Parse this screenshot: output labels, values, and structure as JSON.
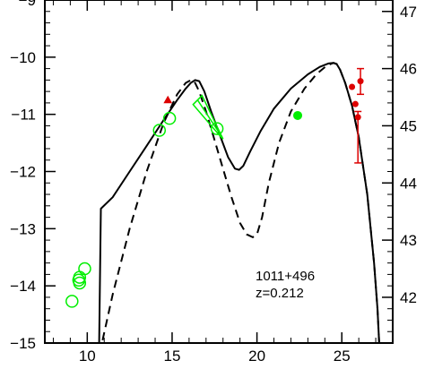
{
  "chart_data": {
    "type": "line",
    "title": "",
    "xlabel": "",
    "ylabel": "",
    "xlim": [
      7.5,
      28
    ],
    "ylim": [
      -15,
      -9
    ],
    "y2lim": [
      41.2,
      47.2
    ],
    "x_ticks": [
      10,
      15,
      20,
      25
    ],
    "y_ticks": [
      -15,
      -14,
      -13,
      -12,
      -11,
      -10,
      -9
    ],
    "y2_ticks": [
      42,
      43,
      44,
      45,
      46,
      47
    ],
    "annotation": [
      "1011+496",
      "z=0.212"
    ],
    "colors": {
      "axes": "#000000",
      "optical_uv": "#00ee00",
      "xray": "#dd0000",
      "radio": "#00ee00"
    },
    "series": [
      {
        "style": "solid",
        "color": "#000000",
        "x": [
          10.7,
          10.8,
          11.5,
          12.5,
          13.5,
          14.5,
          15.3,
          15.8,
          16.1,
          16.35,
          16.6,
          16.9,
          17.3,
          17.8,
          18.3,
          18.7,
          18.95,
          19.2,
          19.6,
          20.2,
          21.0,
          22.0,
          23.0,
          23.7,
          24.2,
          24.5,
          24.7,
          24.9,
          25.2,
          25.6,
          26.0,
          26.5,
          26.9,
          27.1,
          27.2
        ],
        "y": [
          -15.0,
          -12.65,
          -12.45,
          -12.0,
          -11.55,
          -11.1,
          -10.75,
          -10.55,
          -10.45,
          -10.4,
          -10.42,
          -10.6,
          -10.95,
          -11.35,
          -11.75,
          -11.95,
          -11.97,
          -11.9,
          -11.65,
          -11.3,
          -10.9,
          -10.55,
          -10.3,
          -10.17,
          -10.11,
          -10.1,
          -10.12,
          -10.22,
          -10.45,
          -10.85,
          -11.4,
          -12.4,
          -13.6,
          -14.4,
          -15.0
        ]
      },
      {
        "style": "dashed",
        "color": "#000000",
        "x": [
          10.9,
          11.5,
          12.5,
          13.5,
          14.5,
          15.3,
          15.8,
          16.1,
          16.3,
          16.6,
          17.0,
          17.5,
          18.0,
          18.5,
          19.0,
          19.4,
          19.75,
          20.0,
          20.3,
          20.7,
          21.3,
          22.0,
          22.8,
          23.5,
          24.1,
          24.5,
          24.7,
          24.9,
          25.2,
          25.6,
          26.0,
          26.5,
          26.9,
          27.1,
          27.2
        ],
        "y": [
          -14.95,
          -14.15,
          -13.0,
          -12.0,
          -11.15,
          -10.65,
          -10.45,
          -10.4,
          -10.42,
          -10.6,
          -10.95,
          -11.45,
          -11.95,
          -12.45,
          -12.9,
          -13.1,
          -13.15,
          -13.1,
          -12.8,
          -12.2,
          -11.5,
          -10.95,
          -10.55,
          -10.3,
          -10.15,
          -10.1,
          -10.12,
          -10.22,
          -10.45,
          -10.85,
          -11.4,
          -12.4,
          -13.6,
          -14.4,
          -15.0
        ]
      }
    ],
    "open_circles": [
      {
        "x": 9.1,
        "y": -14.27
      },
      {
        "x": 9.5,
        "y": -13.9
      },
      {
        "x": 9.55,
        "y": -13.85
      },
      {
        "x": 9.55,
        "y": -13.95
      },
      {
        "x": 9.85,
        "y": -13.7
      },
      {
        "x": 14.25,
        "y": -11.28
      },
      {
        "x": 14.85,
        "y": -11.07
      },
      {
        "x": 17.65,
        "y": -11.25
      }
    ],
    "optical_slope": {
      "x": [
        16.5,
        17.95
      ],
      "y": [
        -10.75,
        -11.4
      ]
    },
    "filled_circle_green": {
      "x": 22.4,
      "y": -11.02
    },
    "filled_triangle_red": {
      "x": 14.75,
      "y": -10.75
    },
    "red_points": [
      {
        "x": 25.6,
        "y": -10.52
      },
      {
        "x": 25.8,
        "y": -10.82
      },
      {
        "x": 25.95,
        "y": -11.05,
        "y_low": -11.85,
        "y_high": -10.95
      },
      {
        "x": 26.1,
        "y": -10.42,
        "y_low": -10.65,
        "y_high": -10.2
      }
    ]
  }
}
